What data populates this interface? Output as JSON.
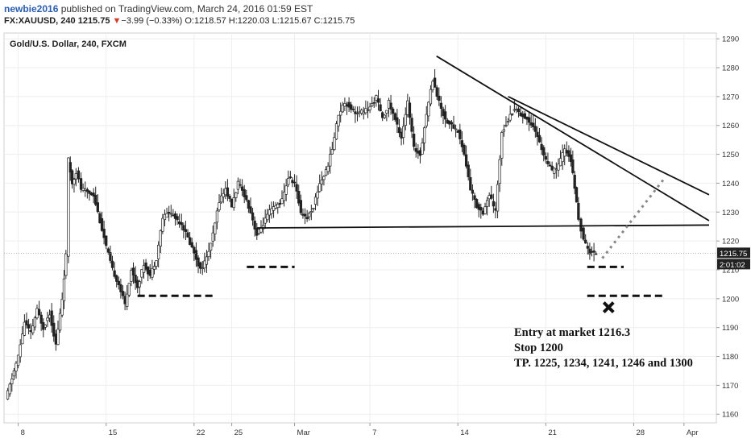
{
  "header": {
    "author": "newbie2016",
    "published_text": " published on TradingView.com, March 24, 2016 01:59 EST",
    "symbol": "FX:XAUUSD, 240",
    "last": "1215.75",
    "change_arrow": "▼",
    "change": "−3.99 (−0.33%)",
    "open_label": "O:",
    "open": "1218.57",
    "high_label": "H:",
    "high": "1220.03",
    "low_label": "L:",
    "low": "1215.67",
    "close_label": "C:",
    "close": "1215.75"
  },
  "chart_data": {
    "type": "candlestick",
    "title": "Gold/U.S. Dollar, 240, FXCM",
    "y_axis_position": "right",
    "ylim": [
      1157,
      1292
    ],
    "y_ticks": [
      1160,
      1170,
      1180,
      1190,
      1200,
      1210,
      1220,
      1230,
      1240,
      1250,
      1260,
      1270,
      1280,
      1290
    ],
    "x_domain": [
      "2016-02-07",
      "2016-04-03"
    ],
    "x_ticks": [
      {
        "date": "2016-02-08",
        "label": "8"
      },
      {
        "date": "2016-02-15",
        "label": "15"
      },
      {
        "date": "2016-02-22",
        "label": "22"
      },
      {
        "date": "2016-02-25",
        "label": "25"
      },
      {
        "date": "2016-03-01",
        "label": "Mar"
      },
      {
        "date": "2016-03-07",
        "label": "7"
      },
      {
        "date": "2016-03-14",
        "label": "14"
      },
      {
        "date": "2016-03-21",
        "label": "21"
      },
      {
        "date": "2016-03-28",
        "label": "28"
      },
      {
        "date": "2016-04-01",
        "label": "Apr"
      }
    ],
    "current_price_label": "1215.75",
    "countdown_label": "2:01:02",
    "price_path": [
      [
        "2016-02-07",
        1165
      ],
      [
        "2016-02-08",
        1180
      ],
      [
        "2016-02-08.5",
        1192
      ],
      [
        "2016-02-09",
        1188
      ],
      [
        "2016-02-09.5",
        1196
      ],
      [
        "2016-02-10",
        1190
      ],
      [
        "2016-02-10.5",
        1195
      ],
      [
        "2016-02-11",
        1184
      ],
      [
        "2016-02-11.5",
        1200
      ],
      [
        "2016-02-11.8",
        1215
      ],
      [
        "2016-02-12",
        1248
      ],
      [
        "2016-02-12.3",
        1240
      ],
      [
        "2016-02-12.6",
        1244
      ],
      [
        "2016-02-13",
        1238
      ],
      [
        "2016-02-14",
        1236
      ],
      [
        "2016-02-15",
        1218
      ],
      [
        "2016-02-15.5",
        1210
      ],
      [
        "2016-02-16",
        1205
      ],
      [
        "2016-02-16.5",
        1198
      ],
      [
        "2016-02-17",
        1210
      ],
      [
        "2016-02-17.5",
        1204
      ],
      [
        "2016-02-18",
        1212
      ],
      [
        "2016-02-18.5",
        1208
      ],
      [
        "2016-02-19",
        1214
      ],
      [
        "2016-02-19.5",
        1228
      ],
      [
        "2016-02-20",
        1230
      ],
      [
        "2016-02-21",
        1226
      ],
      [
        "2016-02-22",
        1216
      ],
      [
        "2016-02-22.5",
        1210
      ],
      [
        "2016-02-23",
        1214
      ],
      [
        "2016-02-23.5",
        1222
      ],
      [
        "2016-02-24",
        1234
      ],
      [
        "2016-02-24.5",
        1238
      ],
      [
        "2016-02-25",
        1232
      ],
      [
        "2016-02-25.5",
        1240
      ],
      [
        "2016-02-26",
        1236
      ],
      [
        "2016-02-26.5",
        1230
      ],
      [
        "2016-02-27",
        1222
      ],
      [
        "2016-02-28",
        1230
      ],
      [
        "2016-02-29",
        1234
      ],
      [
        "2016-02-29.5",
        1242
      ],
      [
        "2016-03-01",
        1240
      ],
      [
        "2016-03-01.5",
        1230
      ],
      [
        "2016-03-02",
        1228
      ],
      [
        "2016-03-02.5",
        1232
      ],
      [
        "2016-03-03",
        1240
      ],
      [
        "2016-03-03.5",
        1244
      ],
      [
        "2016-03-04",
        1252
      ],
      [
        "2016-03-04.5",
        1264
      ],
      [
        "2016-03-05",
        1268
      ],
      [
        "2016-03-06",
        1264
      ],
      [
        "2016-03-07",
        1266
      ],
      [
        "2016-03-07.5",
        1270
      ],
      [
        "2016-03-08",
        1262
      ],
      [
        "2016-03-08.5",
        1268
      ],
      [
        "2016-03-09",
        1262
      ],
      [
        "2016-03-09.5",
        1256
      ],
      [
        "2016-03-10",
        1268
      ],
      [
        "2016-03-10.5",
        1252
      ],
      [
        "2016-03-11",
        1250
      ],
      [
        "2016-03-11.5",
        1264
      ],
      [
        "2016-03-12",
        1276
      ],
      [
        "2016-03-12.5",
        1268
      ],
      [
        "2016-03-13",
        1262
      ],
      [
        "2016-03-14",
        1258
      ],
      [
        "2016-03-14.5",
        1250
      ],
      [
        "2016-03-15",
        1238
      ],
      [
        "2016-03-15.5",
        1232
      ],
      [
        "2016-03-16",
        1230
      ],
      [
        "2016-03-16.5",
        1236
      ],
      [
        "2016-03-17",
        1230
      ],
      [
        "2016-03-17.5",
        1258
      ],
      [
        "2016-03-18",
        1262
      ],
      [
        "2016-03-18.5",
        1266
      ],
      [
        "2016-03-19",
        1264
      ],
      [
        "2016-03-20",
        1260
      ],
      [
        "2016-03-20.5",
        1254
      ],
      [
        "2016-03-21",
        1248
      ],
      [
        "2016-03-21.5",
        1244
      ],
      [
        "2016-03-22",
        1246
      ],
      [
        "2016-03-22.5",
        1252
      ],
      [
        "2016-03-23",
        1248
      ],
      [
        "2016-03-23.3",
        1238
      ],
      [
        "2016-03-23.6",
        1228
      ],
      [
        "2016-03-24",
        1220
      ],
      [
        "2016-03-24.5",
        1216
      ],
      [
        "2016-03-25",
        1215.75
      ]
    ],
    "annotations": {
      "trendlines": [
        {
          "from": [
            "2016-03-12.3",
            1284
          ],
          "to": [
            "2016-04-03",
            1227
          ]
        },
        {
          "from": [
            "2016-03-18",
            1270
          ],
          "to": [
            "2016-04-03",
            1236
          ]
        },
        {
          "from": [
            "2016-02-27",
            1224.5
          ],
          "to": [
            "2016-04-03",
            1225.5
          ]
        }
      ],
      "dashed_levels": [
        {
          "from": "2016-02-17.5",
          "to": "2016-02-23.5",
          "price": 1201
        },
        {
          "from": "2016-02-26.2",
          "to": "2016-03-01",
          "price": 1211
        },
        {
          "from": "2016-03-24.3",
          "to": "2016-03-27.2",
          "price": 1211
        },
        {
          "from": "2016-03-24.3",
          "to": "2016-03-30.3",
          "price": 1201
        }
      ],
      "projection": [
        [
          "2016-03-25.5",
          1214
        ],
        [
          "2016-03-30.5",
          1242
        ]
      ],
      "stop_marker": {
        "date": "2016-03-26",
        "price": 1197
      },
      "note_lines": [
        "Entry at market 1216.3",
        "Stop 1200",
        "TP. 1225, 1234, 1241, 1246 and 1300"
      ]
    }
  },
  "colors": {
    "candle": "#222222",
    "grid": "#eeeeee",
    "axis_text": "#333333",
    "price_tag": "#222222",
    "projection": "#888888",
    "author": "#2a5db0",
    "down": "#d23a2a"
  }
}
